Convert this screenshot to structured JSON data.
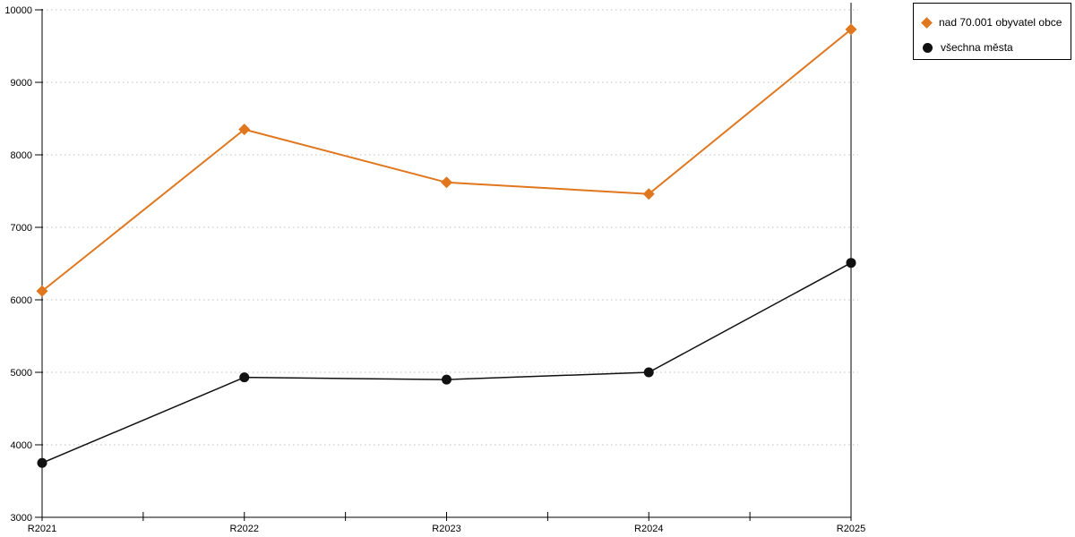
{
  "chart_data": {
    "type": "line",
    "title": "",
    "xlabel": "",
    "ylabel": "",
    "categories": [
      "R2021",
      "R2022",
      "R2023",
      "R2024",
      "R2025"
    ],
    "series": [
      {
        "name": "nad 70.001 obyvatel obce",
        "values": [
          6120,
          8350,
          7620,
          7460,
          9730
        ],
        "color": "#e0761e",
        "marker": "diamond"
      },
      {
        "name": "všechna města",
        "values": [
          3750,
          4930,
          4900,
          5000,
          6510
        ],
        "color": "#111111",
        "marker": "circle"
      }
    ],
    "ylim": [
      3000,
      10000
    ],
    "y_tick_step": 1000,
    "y_tick_labels": [
      "3000",
      "4000",
      "5000",
      "6000",
      "7000",
      "8000",
      "9000",
      "10000"
    ],
    "grid": "horizontal dotted gridlines",
    "gridline_color": "#c0c0c0",
    "axis_color": "#000000",
    "legend_position": "top-right outside plot"
  }
}
